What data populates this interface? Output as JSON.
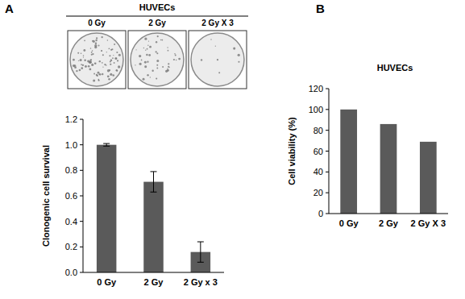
{
  "panels": [
    {
      "label": "A",
      "header": "HUVECs",
      "dishes": [
        "0 Gy",
        "2 Gy",
        "2 Gy X 3"
      ]
    },
    {
      "label": "B"
    }
  ],
  "chart_data": [
    {
      "type": "bar",
      "y_label": "Clonogenic cell survival",
      "categories": [
        "0 Gy",
        "2 Gy",
        "2 Gy x 3"
      ],
      "values": [
        1.0,
        0.71,
        0.16
      ],
      "errors": [
        0.01,
        0.08,
        0.08
      ],
      "color": "#5a5a5a",
      "ylim": [
        0,
        1.2
      ],
      "yticks": [
        {
          "value": 0,
          "label": "0.0"
        },
        0.2,
        0.4,
        0.6,
        0.8,
        {
          "value": 1,
          "label": "1.0"
        },
        1.2
      ],
      "grid": false
    },
    {
      "type": "bar",
      "title": "HUVECs",
      "y_label": "Cell viability (%)",
      "categories": [
        "0 Gy",
        "2 Gy",
        "2 Gy X 3"
      ],
      "values": [
        100,
        86,
        69
      ],
      "color": "#5a5a5a",
      "ylim": [
        0,
        120
      ],
      "yticks": [
        0,
        20,
        40,
        60,
        80,
        100,
        120
      ],
      "grid": false
    }
  ]
}
